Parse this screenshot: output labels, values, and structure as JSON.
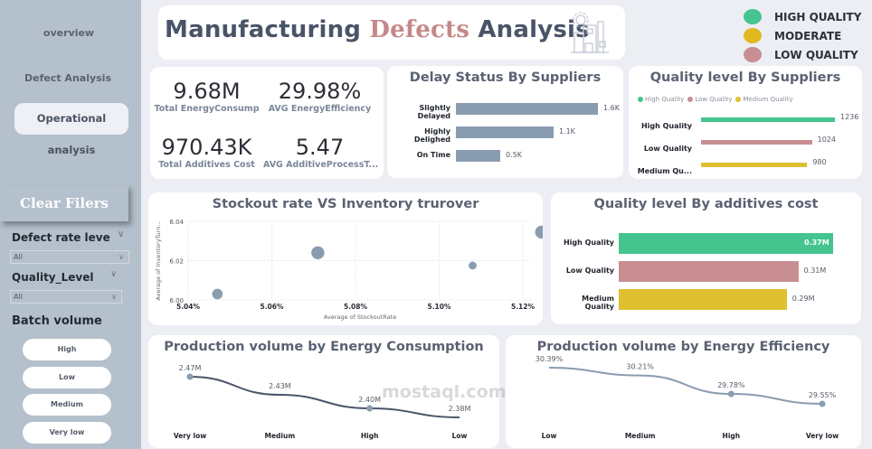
{
  "sidebar": {
    "nav": [
      {
        "label": "overview",
        "active": false
      },
      {
        "label": "Defect Analysis",
        "active": false
      },
      {
        "label": "Operational analysis",
        "active": true
      }
    ],
    "clear_button": "Clear Filers",
    "slicers": [
      {
        "label": "Defect rate leve",
        "value": "All"
      },
      {
        "label": "Quality_Level",
        "value": "All"
      }
    ],
    "batch_volume": {
      "title": "Batch volume",
      "options": [
        "High",
        "Low",
        "Medium",
        "Very low"
      ]
    }
  },
  "header": {
    "title_part1": "Manufacturing",
    "title_accent": "Defects",
    "title_part2": "Analysis",
    "icon": "factory-gear-icon"
  },
  "legend": [
    {
      "label": "HIGH QUALITY",
      "color": "#45c490"
    },
    {
      "label": "MODERATE",
      "color": "#e0b820"
    },
    {
      "label": "LOW QUALITY",
      "color": "#c98e92"
    }
  ],
  "kpis": [
    {
      "value": "9.68M",
      "label": "Total EnergyConsump"
    },
    {
      "value": "29.98%",
      "label": "AVG EnergyEfficiency"
    },
    {
      "value": "970.43K",
      "label": "Total Additives Cost"
    },
    {
      "value": "5.47",
      "label": "AVG AdditiveProcessT..."
    }
  ],
  "colors": {
    "high": "#45c490",
    "low": "#c98e92",
    "medium": "#e0c030",
    "steel": "#8a9cb0",
    "line_dark": "#4a5568"
  },
  "chart_data": [
    {
      "id": "delay",
      "type": "bar",
      "title": "Delay Status By Suppliers",
      "categories": [
        "Slightly Delayed",
        "Highly Delighed",
        "On Time"
      ],
      "values": [
        1.6,
        1.1,
        0.5
      ],
      "value_labels": [
        "1.6K",
        "1.1K",
        "0.5K"
      ],
      "unit": "K",
      "orientation": "horizontal"
    },
    {
      "id": "supplier_quality",
      "type": "bar",
      "title": "Quality level By Suppliers",
      "legend": [
        "High Quality",
        "Low Quality",
        "Medium Quality"
      ],
      "categories": [
        "High Quality",
        "Low Quality",
        "Medium Qu..."
      ],
      "values": [
        1236,
        1024,
        980
      ],
      "value_labels": [
        "1236",
        "1024",
        "980"
      ],
      "orientation": "horizontal",
      "legend_position": "top-left"
    },
    {
      "id": "scatter",
      "type": "scatter",
      "title": "Stockout rate VS Inventory trurover",
      "xlabel": "Average of StockoutRate",
      "ylabel": "Average of InventoryTurn...",
      "x_ticks": [
        "5.04%",
        "5.06%",
        "5.08%",
        "5.10%",
        "5.12%"
      ],
      "y_ticks": [
        "6.00",
        "6.02",
        "6.04"
      ],
      "xlim": [
        5.04,
        5.125
      ],
      "ylim": [
        6.0,
        6.04
      ],
      "points": [
        {
          "x": 5.047,
          "y": 6.003,
          "size": 2
        },
        {
          "x": 5.071,
          "y": 6.024,
          "size": 3
        },
        {
          "x": 5.108,
          "y": 6.0175,
          "size": 1
        },
        {
          "x": 5.1245,
          "y": 6.0345,
          "size": 3
        }
      ],
      "grid": true
    },
    {
      "id": "additive_cost",
      "type": "bar",
      "title": "Quality level By additives cost",
      "categories": [
        "High Quality",
        "Low Quality",
        "Medium Quality"
      ],
      "values": [
        0.37,
        0.31,
        0.29
      ],
      "value_labels": [
        "0.37M",
        "0.31M",
        "0.29M"
      ],
      "unit": "M",
      "orientation": "horizontal"
    },
    {
      "id": "energy_consumption",
      "type": "line",
      "title": "Production volume by Energy Consumption",
      "categories": [
        "Very low",
        "Medium",
        "High",
        "Low"
      ],
      "values": [
        2.47,
        2.43,
        2.4,
        2.38
      ],
      "value_labels": [
        "2.47M",
        "2.43M",
        "2.40M",
        "2.38M"
      ],
      "unit": "M"
    },
    {
      "id": "energy_efficiency",
      "type": "line",
      "title": "Production volume by Energy Efficiency",
      "categories": [
        "Low",
        "Medium",
        "High",
        "Very low"
      ],
      "values": [
        30.39,
        30.21,
        29.78,
        29.55
      ],
      "value_labels": [
        "30.39%",
        "30.21%",
        "29.78%",
        "29.55%"
      ],
      "unit": "%"
    }
  ],
  "watermark": "mostaql.com"
}
